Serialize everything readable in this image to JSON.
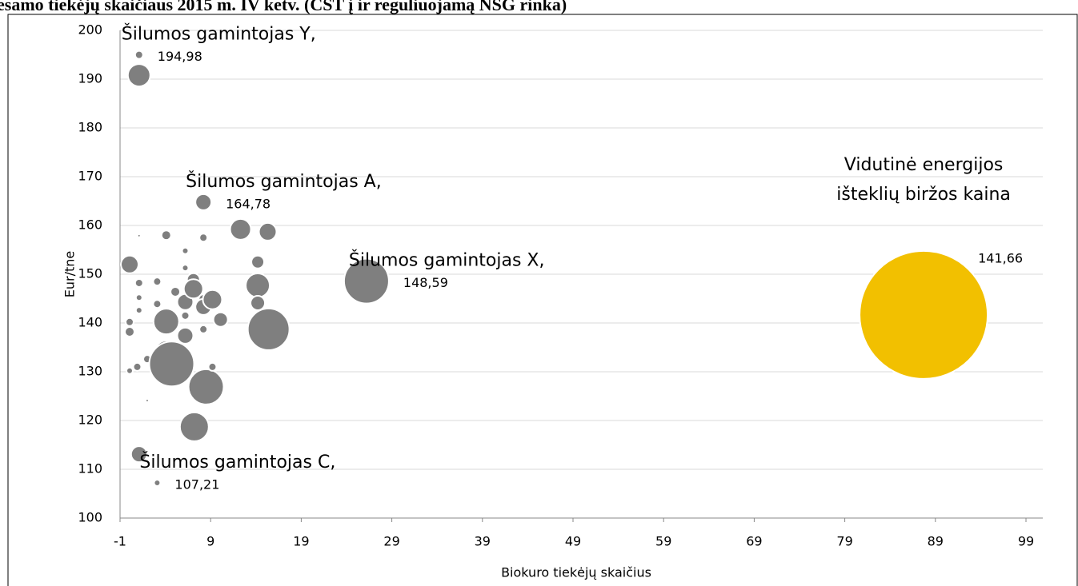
{
  "chart_data": {
    "type": "bubble",
    "title": "esamo tiekėjų skaičiaus 2015 m. IV ketv. (CŠT į ir reguliuojamą NŠG rinka)",
    "x_label": "Biokuro tiekėjų skaičius",
    "y_label": "Eur/tne",
    "xlim": [
      -1,
      99
    ],
    "xticks": [
      -1,
      9,
      19,
      29,
      39,
      49,
      59,
      69,
      79,
      89,
      99
    ],
    "ylim": [
      100,
      200
    ],
    "yticks": [
      100,
      110,
      120,
      130,
      140,
      150,
      160,
      170,
      180,
      190,
      200
    ],
    "grid": true,
    "series": [
      {
        "color": "#7f7f7f",
        "x": [
          1.1,
          1.1,
          8.2,
          26.2,
          3.1,
          0.06,
          1.1,
          1.1,
          1.1,
          1.1,
          0.06,
          0.06,
          0.06,
          0.9,
          2.0,
          2.0,
          1.1,
          3.1,
          3.1,
          4.1,
          3.4,
          4.1,
          4.1,
          4.7,
          5.1,
          6.2,
          6.2,
          6.2,
          6.2,
          6.2,
          7.1,
          7.1,
          8.2,
          8.2,
          8.2,
          8.2,
          8.5,
          7.2,
          9.2,
          9.2,
          10.1,
          12.3,
          15.3,
          14.2,
          14.2,
          14.2,
          15.4
        ],
        "values": [
          194.98,
          190.8,
          164.78,
          148.59,
          107.21,
          152.0,
          157.9,
          148.2,
          145.2,
          142.6,
          140.2,
          138.2,
          130.2,
          131.0,
          132.6,
          124.1,
          113.1,
          143.9,
          148.5,
          158.0,
          131.5,
          134.1,
          140.3,
          131.6,
          146.4,
          151.3,
          154.8,
          137.4,
          141.5,
          144.3,
          148.9,
          147.0,
          144.9,
          143.3,
          138.7,
          157.5,
          126.9,
          118.7,
          131.0,
          144.8,
          140.7,
          159.2,
          158.7,
          152.5,
          147.7,
          144.1,
          138.7
        ],
        "sizes": [
          0.39,
          3.06,
          1.56,
          12.25,
          0.25,
          1.89,
          0.06,
          0.39,
          0.25,
          0.25,
          0.39,
          0.56,
          0.25,
          0.39,
          0.39,
          0.06,
          1.56,
          0.39,
          0.39,
          0.56,
          1.56,
          3.06,
          4,
          12.25,
          0.56,
          0.25,
          0.25,
          1.56,
          0.39,
          1.56,
          1,
          2.25,
          0.56,
          1.56,
          0.39,
          0.39,
          7.56,
          5.06,
          0.39,
          2.25,
          1.27,
          2.64,
          1.89,
          1,
          3.52,
          1.27,
          10.56
        ],
        "point_labels": [
          [
            "Šilumos gamintojas Y,"
          ],
          null,
          [
            "Šilumos gamintojas A,"
          ],
          [
            "Šilumos gamintojas X,"
          ],
          [
            "Šilumos gamintojas C,"
          ],
          null,
          null,
          null,
          null,
          null,
          null,
          null,
          null,
          null,
          null,
          null,
          null,
          null,
          null,
          null,
          null,
          null,
          null,
          null,
          null,
          null,
          null,
          null,
          null,
          null,
          null,
          null,
          null,
          null,
          null,
          null,
          null,
          null,
          null,
          null,
          null,
          null,
          null,
          null,
          null,
          null,
          null
        ],
        "value_labels": [
          "194,98",
          null,
          "164,78",
          "148,59",
          "107,21",
          null,
          null,
          null,
          null,
          null,
          null,
          null,
          null,
          null,
          null,
          null,
          null,
          null,
          null,
          null,
          null,
          null,
          null,
          null,
          null,
          null,
          null,
          null,
          null,
          null,
          null,
          null,
          null,
          null,
          null,
          null,
          null,
          null,
          null,
          null,
          null,
          null,
          null,
          null,
          null,
          null,
          null
        ]
      },
      {
        "color": "#f2c000",
        "x": [
          87.7
        ],
        "values": [
          141.66
        ],
        "sizes": [
          100
        ],
        "point_labels": [
          [
            "Vidutinė energijos",
            "išteklių biržos kaina"
          ]
        ],
        "value_labels": [
          "141,66"
        ]
      }
    ]
  }
}
